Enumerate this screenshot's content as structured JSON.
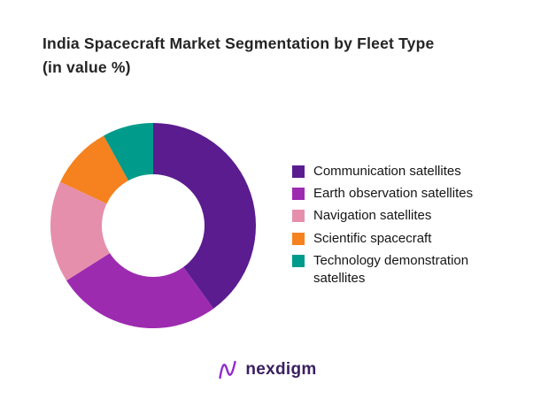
{
  "title": {
    "line1": "India Spacecraft Market Segmentation by Fleet Type",
    "line2": "(in value %)"
  },
  "chart_data": {
    "type": "pie",
    "subtype": "donut",
    "title": "India Spacecraft Market Segmentation by Fleet Type (in value %)",
    "units": "value %",
    "legend_position": "right",
    "start_angle_deg": 0,
    "direction": "clockwise",
    "inner_radius_ratio": 0.5,
    "segments": [
      {
        "label": "Communication satellites",
        "value": 40,
        "color": "#5B1C8F"
      },
      {
        "label": "Earth observation satellites",
        "value": 26,
        "color": "#9D2BB0"
      },
      {
        "label": "Navigation satellites",
        "value": 16,
        "color": "#E58FAC"
      },
      {
        "label": "Scientific spacecraft",
        "value": 10,
        "color": "#F5821F"
      },
      {
        "label": "Technology demonstration satellites",
        "value": 8,
        "color": "#009B8A"
      }
    ]
  },
  "logo": {
    "text": "nexdigm",
    "icon": "nexdigm-wave-icon",
    "text_color": "#3a2061",
    "icon_color": "#8F2BD1"
  }
}
